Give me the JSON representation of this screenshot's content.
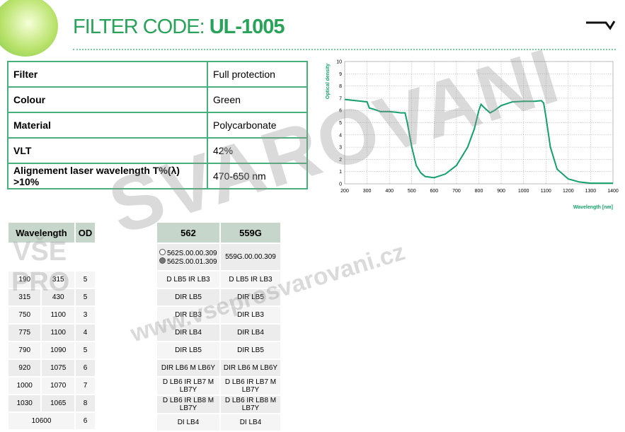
{
  "header": {
    "title_prefix": "FILTER CODE:",
    "title_code": "UL-1005"
  },
  "specs": {
    "rows": [
      [
        "Filter",
        "Full protection"
      ],
      [
        "Colour",
        "Green"
      ],
      [
        "Material",
        "Polycarbonate"
      ],
      [
        "VLT",
        "42%"
      ],
      [
        "Alignement laser wavelength T%(λ) >10%",
        "470-650 nm"
      ]
    ]
  },
  "chart_data": {
    "type": "line",
    "ylabel": "Optical density",
    "xlabel": "Wavelength [nm]",
    "x": [
      200,
      250,
      300,
      310,
      330,
      360,
      400,
      430,
      450,
      470,
      480,
      500,
      520,
      540,
      560,
      600,
      650,
      700,
      750,
      780,
      800,
      810,
      820,
      850,
      870,
      900,
      950,
      1000,
      1050,
      1080,
      1090,
      1100,
      1120,
      1150,
      1200,
      1250,
      1300,
      1400
    ],
    "series": [
      {
        "color": "#13a06a",
        "values": [
          6.9,
          6.8,
          6.7,
          6.2,
          6.1,
          5.9,
          5.9,
          5.85,
          5.8,
          5.8,
          5.0,
          3.0,
          1.5,
          0.9,
          0.6,
          0.5,
          0.8,
          1.5,
          3.0,
          4.5,
          6.0,
          6.5,
          6.3,
          5.8,
          6.0,
          6.4,
          6.7,
          6.75,
          6.75,
          6.8,
          6.6,
          5.5,
          3.0,
          1.2,
          0.4,
          0.15,
          0.05,
          0.05
        ]
      }
    ],
    "xlim": [
      200,
      1400
    ],
    "ylim": [
      0,
      10
    ],
    "xticks": [
      200,
      300,
      400,
      500,
      600,
      700,
      800,
      900,
      1000,
      1100,
      1200,
      1300,
      1400
    ],
    "yticks": [
      0,
      1,
      2,
      3,
      4,
      5,
      6,
      7,
      8,
      9,
      10
    ],
    "grid": true
  },
  "table": {
    "headers": [
      "Wavelength",
      "OD",
      "562",
      "559G"
    ],
    "codes": {
      "562": [
        "562S.00.00.309",
        "562S.00.01.309"
      ],
      "559G": "559G.00.00.309"
    },
    "rows": [
      [
        190,
        315,
        5,
        "D LB5 IR LB3",
        "D LB5 IR LB3"
      ],
      [
        315,
        430,
        5,
        "DIR LB5",
        "DIR LB5"
      ],
      [
        750,
        1100,
        3,
        "DIR LB3",
        "DIR LB3"
      ],
      [
        775,
        1100,
        4,
        "DIR LB4",
        "DIR LB4"
      ],
      [
        790,
        1090,
        5,
        "DIR LB5",
        "DIR LB5"
      ],
      [
        920,
        1075,
        6,
        "DIR LB6 M LB6Y",
        "DIR LB6 M LB6Y"
      ],
      [
        1000,
        1070,
        7,
        "D LB6 IR LB7 M LB7Y",
        "D LB6 IR LB7 M LB7Y"
      ],
      [
        1030,
        1065,
        8,
        "D LB6 IR LB8 M LB7Y",
        "D LB6 IR LB8 M LB7Y"
      ],
      [
        10600,
        6,
        "DI LB4",
        "DI LB4"
      ]
    ]
  },
  "watermark": [
    "VŠE",
    "PRO",
    "SVAROVANI",
    "www.vseprosvarovani.cz"
  ]
}
